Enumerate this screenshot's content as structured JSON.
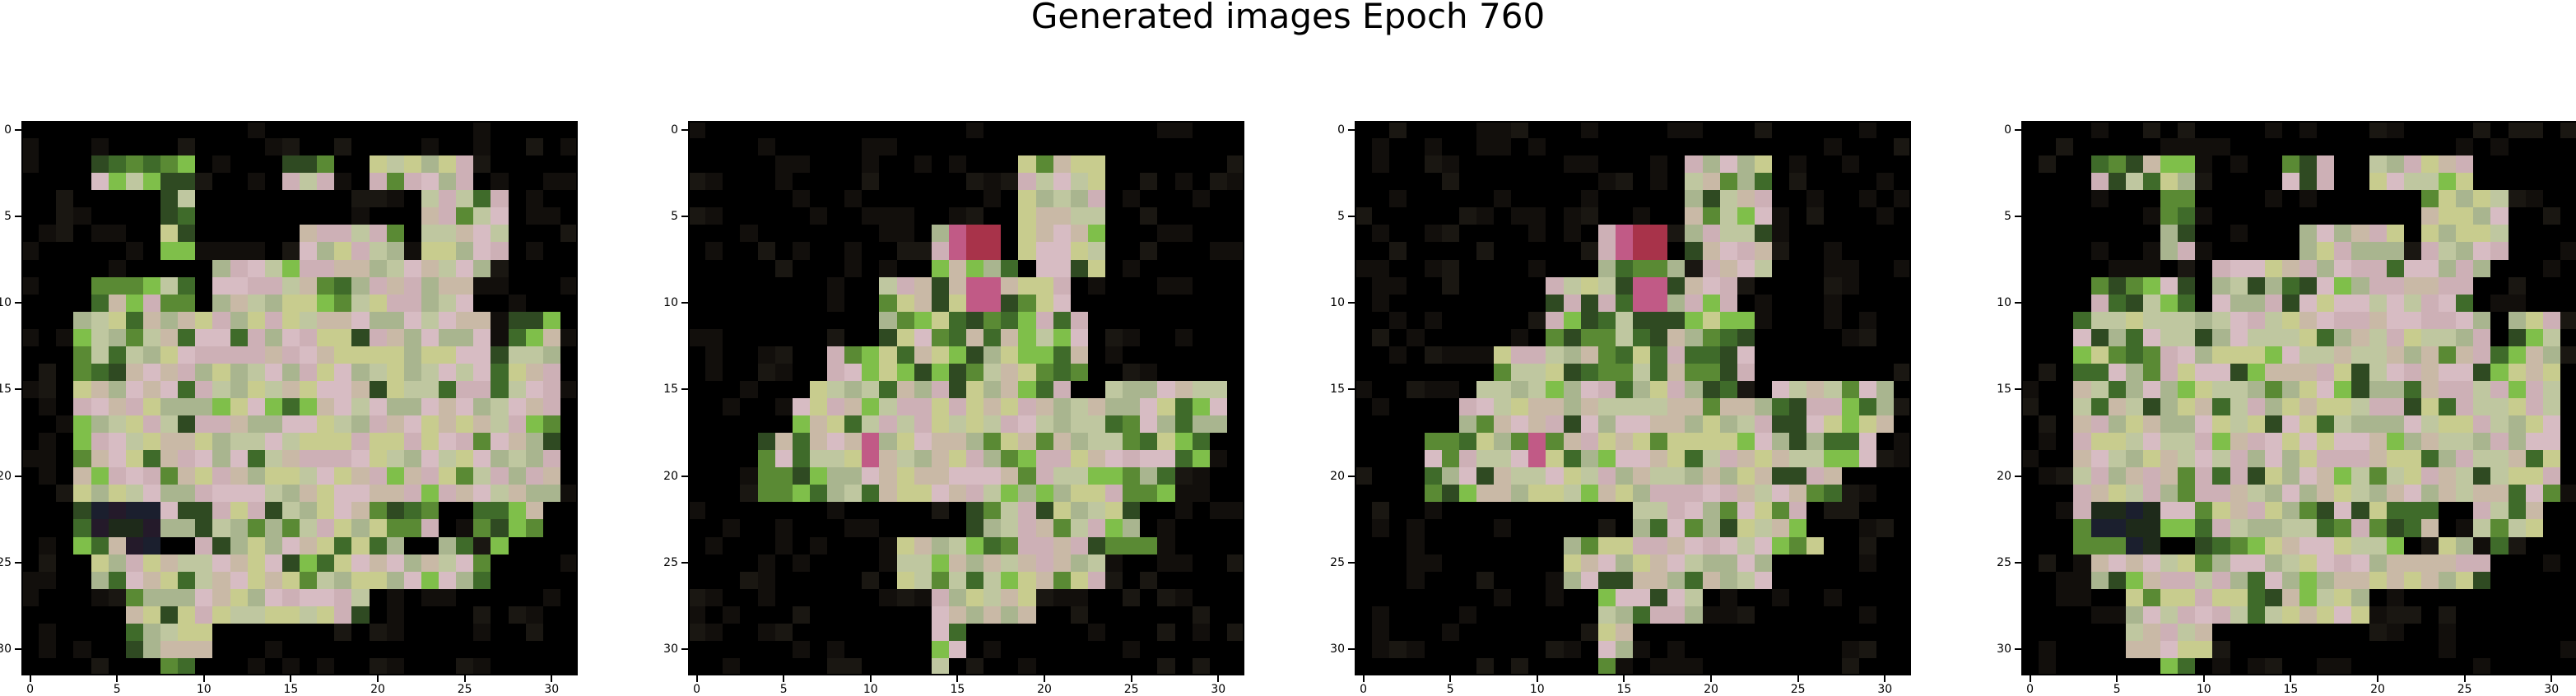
{
  "title": "Generated images Epoch 760",
  "chart_data": [
    {
      "type": "heatmap",
      "title": "",
      "shape": [
        32,
        32
      ],
      "x_ticks": [
        0,
        5,
        10,
        15,
        20,
        25,
        30
      ],
      "y_ticks": [
        0,
        5,
        10,
        15,
        20,
        25,
        30
      ],
      "xlim": [
        -0.5,
        31.5
      ],
      "ylim": [
        31.5,
        -0.5
      ],
      "rows": [
        "........................",
        "...gggg....gg..PPPP.....",
        "......g..........PPPP...",
        "......g.....PPPP.PPPP...",
        "........PPPPPPPPPPPP....",
        "...gggg.PPPPPPPPPPP.....",
        "..PPgPPPPPPPPPPPPPPP.gg.",
        "..ggPPPPPPPPPPPPPPPPgPP.",
        "..PPPPPPPPPPPPPPPPPPPPP.",
        "..PPPPPPPPPPPPPPPPPPPPg.",
        "..gPPPPPPPPPPPPPPPPPPPP.",
        "..PPPPPPPPPPPPPPPPPPPPg.",
        "..gdddggPPPPPPPggg.ggg..",
        "..ggdd.ggPPPPPPg..g.g...",
        "...PPPPPPPPPPPPPPPPg.....",
        "....PPPPPPPPPPP.........",
        "....PPPP................",
        "......g................."
      ]
    },
    {
      "type": "heatmap",
      "title": "",
      "shape": [
        32,
        32
      ],
      "x_ticks": [
        0,
        5,
        10,
        15,
        20,
        25,
        30
      ],
      "y_ticks": [
        0,
        5,
        10,
        15,
        20,
        25,
        30
      ],
      "xlim": [
        -0.5,
        31.5
      ],
      "ylim": [
        31.5,
        -0.5
      ],
      "rows": [
        "........................",
        "..............PPPP......",
        "..............PPPP......",
        "..........PmR.PPPP......",
        "..........gggg.PPP......",
        "........gPggmgPP........",
        "........ggggggggg.......",
        "......ggPggggPggg.......",
        ".....gPPgPPgPPgg..PPPPP.",
        "....gPPPPPPPPPPPPPgPPgP.",
        "...ggPPmPPPPPPPPPPPPgg..",
        "...gggPgPPPPPPPPPPggg...",
        "............gPPgggg.....",
        ".........PPPPgPPPggg....",
        ".........PgPPPPPPP......",
        "..........PPPPP.........",
        "..........Pg............",
        "..........P............."
      ]
    },
    {
      "type": "heatmap",
      "title": "",
      "shape": [
        32,
        32
      ],
      "x_ticks": [
        0,
        5,
        10,
        15,
        20,
        25,
        30
      ],
      "y_ticks": [
        0,
        5,
        10,
        15,
        20,
        25,
        30
      ],
      "xlim": [
        -0.5,
        31.5
      ],
      "ylim": [
        31.5,
        -0.5
      ],
      "rows": [
        "........................",
        "..............PPPP......",
        "..............PPPP......",
        "..........PmR.PPPP......",
        "..........gggg.PPP......",
        "........gPggmgPP........",
        "........ggggggggg.......",
        "......ggPggggPggg.......",
        ".....gPPgPPgPPgg..PPPPP.",
        "....gPPPPPPPPPPPPPgPPgP.",
        "...ggPPmPPPPPPPPPPPPgg..",
        "...gggPgPPPPPPPPPPggg...",
        "............gPPgggg.....",
        ".........PPPPgPPPggg....",
        ".........PgPPPPPPP......",
        "..........PPPPP.........",
        "..........Pg............",
        "..........P............."
      ]
    },
    {
      "type": "heatmap",
      "title": "",
      "shape": [
        32,
        32
      ],
      "x_ticks": [
        0,
        5,
        10,
        15,
        20,
        25,
        30
      ],
      "y_ticks": [
        0,
        5,
        10,
        15,
        20,
        25,
        30
      ],
      "xlim": [
        -0.5,
        31.5
      ],
      "ylim": [
        31.5,
        -0.5
      ],
      "rows": [
        "........................",
        "...gggg....gg..PPPP.....",
        "......g..........PPPP...",
        "......g.....PPPP.PPPP...",
        "........PPPPPPPPPPPP....",
        "...gggg.PPPPPPPPPPP.....",
        "..PPgPPPPPPPPPPPPPPP.gg.",
        "..ggPPPPPPPPPPPPPPPPgPP.",
        "..PPPPPPPPPPPPPPPPPPPPP.",
        "..PPPPPPPPPPPPPPPPPPPPg.",
        "..gPPPPPPPPPPPPPPPPPPPP.",
        "..PPPPPPPPPPPPPPPPPPPPg.",
        "..gdddggPPPPPPPggg.ggg..",
        "..ggdd.ggPPPPPPg..g.g...",
        "...PPPPPPPPPPPPPPPPg.....",
        "....PPPPPPPPPPP.........",
        "....PPPP................",
        "......g................."
      ]
    }
  ],
  "colors": {
    "background": "#000000",
    "pastel": [
      "#c9b9a6",
      "#d7bcc3",
      "#c8cc8e",
      "#a9b58f",
      "#cdb0b6",
      "#bfc7a0"
    ],
    "green": [
      "#5a8a34",
      "#3f6b2a",
      "#7fbf4a",
      "#2f4a22"
    ],
    "dark": [
      "#1b1f2e",
      "#241a2a",
      "#1e2a1a"
    ],
    "magenta": "#c15a86",
    "red": "#a8334a"
  }
}
